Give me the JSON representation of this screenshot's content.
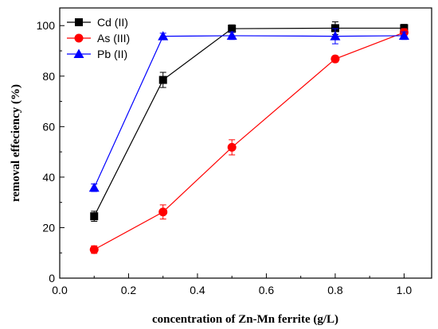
{
  "chart_data": {
    "type": "line",
    "x": [
      0.1,
      0.3,
      0.5,
      0.8,
      1.0
    ],
    "xlabel": "concentration of Zn-Mn ferrite (g/L)",
    "ylabel": "removal effeciency (%)",
    "xlim": [
      0.0,
      1.08
    ],
    "ylim": [
      0,
      107
    ],
    "xticks": [
      "0.0",
      "0.2",
      "0.4",
      "0.6",
      "0.8",
      "1.0"
    ],
    "yticks": [
      "0",
      "20",
      "40",
      "60",
      "80",
      "100"
    ],
    "legend_position": "top-left",
    "grid": false,
    "series": [
      {
        "name": "Cd (II)",
        "color": "#000000",
        "marker": "square",
        "values": [
          24.5,
          78.5,
          98.8,
          99.0,
          99.0
        ],
        "errors": [
          2.0,
          3.0,
          1.5,
          2.5,
          1.5
        ]
      },
      {
        "name": "As (III)",
        "color": "#ff0000",
        "marker": "circle",
        "values": [
          11.3,
          26.2,
          51.8,
          86.8,
          97.3
        ],
        "errors": [
          1.5,
          2.8,
          3.0,
          1.2,
          1.5
        ]
      },
      {
        "name": "Pb (II)",
        "color": "#0000ff",
        "marker": "triangle",
        "values": [
          35.8,
          95.8,
          96.0,
          95.8,
          96.0
        ],
        "errors": [
          1.5,
          1.2,
          1.5,
          3.0,
          1.5
        ]
      }
    ]
  }
}
